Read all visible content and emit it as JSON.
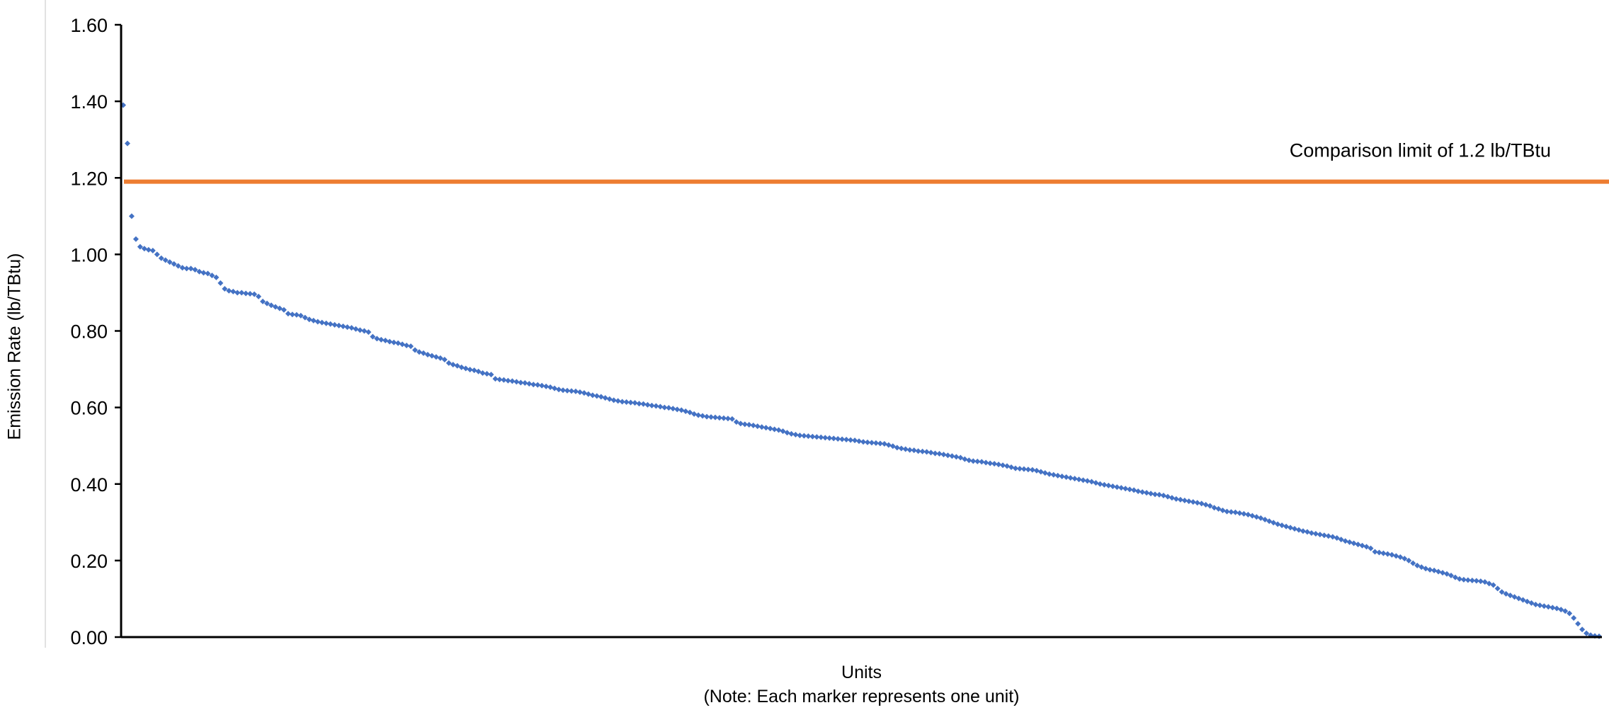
{
  "chart_data": {
    "type": "scatter",
    "title": "",
    "xlabel": "Units",
    "xlabel_note": "(Note: Each marker represents one unit)",
    "ylabel": "Emission Rate (lb/TBtu)",
    "ylim": [
      0,
      1.6
    ],
    "yticks": [
      "0.00",
      "0.20",
      "0.40",
      "0.60",
      "0.80",
      "1.00",
      "1.20",
      "1.40",
      "1.60"
    ],
    "grid": false,
    "legend": "none",
    "marker_color": "#4472C4",
    "limit_line": {
      "value": 1.19,
      "label": "Comparison limit of 1.2 lb/TBtu",
      "color": "#ED7D31"
    },
    "series": [
      {
        "values": [
          1.39,
          1.29,
          1.1,
          1.04,
          1.02,
          1.015,
          1.012,
          1.01,
          1.0,
          0.99,
          0.985,
          0.98,
          0.975,
          0.97,
          0.965,
          0.963,
          0.963,
          0.96,
          0.955,
          0.952,
          0.95,
          0.945,
          0.94,
          0.925,
          0.91,
          0.905,
          0.903,
          0.9,
          0.9,
          0.898,
          0.897,
          0.896,
          0.89,
          0.877,
          0.872,
          0.867,
          0.863,
          0.859,
          0.855,
          0.845,
          0.843,
          0.842,
          0.84,
          0.835,
          0.83,
          0.827,
          0.824,
          0.822,
          0.82,
          0.818,
          0.816,
          0.814,
          0.812,
          0.81,
          0.808,
          0.805,
          0.802,
          0.8,
          0.797,
          0.785,
          0.78,
          0.777,
          0.775,
          0.772,
          0.77,
          0.768,
          0.765,
          0.762,
          0.76,
          0.75,
          0.745,
          0.742,
          0.738,
          0.735,
          0.732,
          0.729,
          0.725,
          0.716,
          0.712,
          0.709,
          0.705,
          0.702,
          0.699,
          0.697,
          0.694,
          0.69,
          0.688,
          0.686,
          0.675,
          0.673,
          0.672,
          0.67,
          0.669,
          0.667,
          0.665,
          0.664,
          0.662,
          0.66,
          0.659,
          0.657,
          0.655,
          0.653,
          0.65,
          0.647,
          0.645,
          0.644,
          0.643,
          0.642,
          0.64,
          0.638,
          0.635,
          0.632,
          0.63,
          0.628,
          0.625,
          0.622,
          0.619,
          0.617,
          0.615,
          0.614,
          0.613,
          0.612,
          0.61,
          0.609,
          0.607,
          0.605,
          0.604,
          0.602,
          0.6,
          0.599,
          0.597,
          0.595,
          0.593,
          0.59,
          0.587,
          0.583,
          0.58,
          0.578,
          0.576,
          0.575,
          0.574,
          0.573,
          0.572,
          0.571,
          0.57,
          0.562,
          0.558,
          0.556,
          0.555,
          0.553,
          0.551,
          0.549,
          0.547,
          0.545,
          0.543,
          0.541,
          0.538,
          0.534,
          0.531,
          0.529,
          0.527,
          0.526,
          0.525,
          0.524,
          0.523,
          0.522,
          0.521,
          0.52,
          0.519,
          0.518,
          0.517,
          0.516,
          0.515,
          0.514,
          0.512,
          0.51,
          0.509,
          0.508,
          0.507,
          0.506,
          0.505,
          0.502,
          0.499,
          0.495,
          0.493,
          0.491,
          0.489,
          0.488,
          0.486,
          0.485,
          0.484,
          0.482,
          0.48,
          0.479,
          0.477,
          0.475,
          0.473,
          0.471,
          0.469,
          0.465,
          0.462,
          0.46,
          0.459,
          0.458,
          0.456,
          0.454,
          0.453,
          0.451,
          0.449,
          0.447,
          0.444,
          0.441,
          0.44,
          0.439,
          0.438,
          0.437,
          0.435,
          0.432,
          0.429,
          0.426,
          0.424,
          0.422,
          0.42,
          0.418,
          0.416,
          0.414,
          0.412,
          0.41,
          0.408,
          0.406,
          0.403,
          0.4,
          0.398,
          0.396,
          0.394,
          0.392,
          0.39,
          0.388,
          0.386,
          0.384,
          0.381,
          0.379,
          0.377,
          0.375,
          0.373,
          0.372,
          0.37,
          0.367,
          0.364,
          0.361,
          0.359,
          0.357,
          0.355,
          0.353,
          0.351,
          0.349,
          0.346,
          0.343,
          0.338,
          0.335,
          0.331,
          0.328,
          0.327,
          0.326,
          0.324,
          0.322,
          0.32,
          0.317,
          0.314,
          0.311,
          0.307,
          0.303,
          0.299,
          0.295,
          0.292,
          0.289,
          0.286,
          0.283,
          0.28,
          0.277,
          0.275,
          0.272,
          0.27,
          0.268,
          0.266,
          0.264,
          0.262,
          0.259,
          0.255,
          0.251,
          0.248,
          0.245,
          0.242,
          0.239,
          0.236,
          0.232,
          0.223,
          0.221,
          0.219,
          0.217,
          0.215,
          0.212,
          0.209,
          0.205,
          0.2,
          0.193,
          0.187,
          0.183,
          0.179,
          0.176,
          0.174,
          0.171,
          0.168,
          0.165,
          0.161,
          0.156,
          0.152,
          0.15,
          0.149,
          0.148,
          0.147,
          0.146,
          0.144,
          0.14,
          0.136,
          0.127,
          0.118,
          0.113,
          0.109,
          0.105,
          0.101,
          0.097,
          0.093,
          0.089,
          0.085,
          0.083,
          0.081,
          0.079,
          0.077,
          0.075,
          0.072,
          0.068,
          0.062,
          0.05,
          0.035,
          0.02,
          0.01,
          0.005,
          0.003,
          0.002
        ]
      }
    ]
  }
}
